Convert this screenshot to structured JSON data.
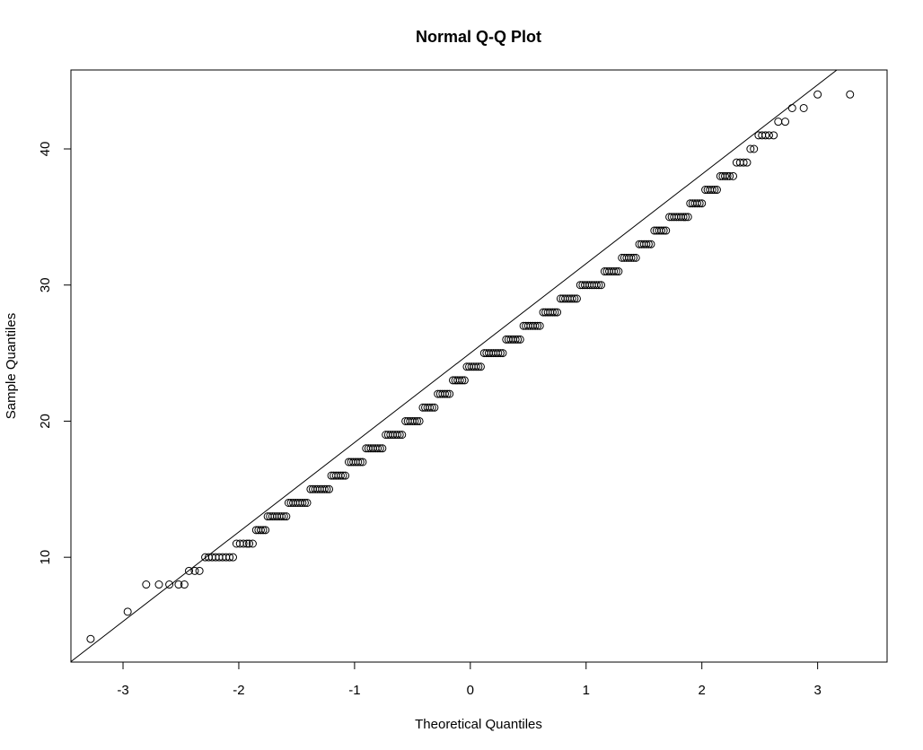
{
  "chart_data": {
    "type": "scatter",
    "title": "Normal Q-Q Plot",
    "xlabel": "Theoretical Quantiles",
    "ylabel": "Sample Quantiles",
    "xlim": [
      -3.45,
      3.6
    ],
    "ylim": [
      2.3,
      45.8
    ],
    "x_ticks": [
      -3,
      -2,
      -1,
      0,
      1,
      2,
      3
    ],
    "x_tick_labels": [
      "-3",
      "-2",
      "-1",
      "0",
      "1",
      "2",
      "3"
    ],
    "y_ticks": [
      10,
      20,
      30,
      40
    ],
    "y_tick_labels": [
      "10",
      "20",
      "30",
      "40"
    ],
    "reference_line": {
      "intercept": 25,
      "slope": 6.57
    },
    "colors": {
      "points": "#000000",
      "line": "#000000",
      "background": "#ffffff"
    },
    "grid": false,
    "points": [
      [
        -3.28,
        4
      ],
      [
        -2.96,
        6
      ],
      [
        -2.8,
        8
      ],
      [
        -2.69,
        8
      ],
      [
        -2.6,
        8
      ],
      [
        -2.52,
        8
      ],
      [
        -2.47,
        8
      ],
      [
        -2.43,
        9
      ],
      [
        -2.38,
        9
      ],
      [
        -2.34,
        9
      ],
      [
        -2.29,
        10
      ],
      [
        -2.26,
        10
      ],
      [
        -2.23,
        10
      ],
      [
        -2.2,
        10
      ],
      [
        -2.17,
        10
      ],
      [
        -2.14,
        10
      ],
      [
        -2.11,
        10
      ],
      [
        -2.08,
        10
      ],
      [
        -2.05,
        10
      ],
      [
        -2.02,
        11
      ],
      [
        -1.99,
        11
      ],
      [
        -1.96,
        11
      ],
      [
        -1.93,
        11
      ],
      [
        -1.91,
        11
      ],
      [
        -1.88,
        11
      ],
      [
        -1.85,
        12
      ],
      [
        -1.83,
        12
      ],
      [
        -1.81,
        12
      ],
      [
        -1.79,
        12
      ],
      [
        -1.77,
        12
      ],
      [
        -1.75,
        13
      ],
      [
        -1.73,
        13
      ],
      [
        -1.71,
        13
      ],
      [
        -1.69,
        13
      ],
      [
        -1.67,
        13
      ],
      [
        -1.65,
        13
      ],
      [
        -1.63,
        13
      ],
      [
        -1.61,
        13
      ],
      [
        -1.59,
        13
      ],
      [
        -1.57,
        14
      ],
      [
        -1.55,
        14
      ],
      [
        -1.53,
        14
      ],
      [
        -1.51,
        14
      ],
      [
        -1.49,
        14
      ],
      [
        -1.47,
        14
      ],
      [
        -1.45,
        14
      ],
      [
        -1.43,
        14
      ],
      [
        -1.41,
        14
      ],
      [
        -1.38,
        15
      ],
      [
        -1.36,
        15
      ],
      [
        -1.34,
        15
      ],
      [
        -1.32,
        15
      ],
      [
        -1.3,
        15
      ],
      [
        -1.28,
        15
      ],
      [
        -1.26,
        15
      ],
      [
        -1.24,
        15
      ],
      [
        -1.22,
        15
      ],
      [
        -1.2,
        16
      ],
      [
        -1.18,
        16
      ],
      [
        -1.16,
        16
      ],
      [
        -1.14,
        16
      ],
      [
        -1.12,
        16
      ],
      [
        -1.1,
        16
      ],
      [
        -1.08,
        16
      ],
      [
        -1.05,
        17
      ],
      [
        -1.03,
        17
      ],
      [
        -1.01,
        17
      ],
      [
        -0.99,
        17
      ],
      [
        -0.97,
        17
      ],
      [
        -0.95,
        17
      ],
      [
        -0.93,
        17
      ],
      [
        -0.9,
        18
      ],
      [
        -0.88,
        18
      ],
      [
        -0.86,
        18
      ],
      [
        -0.84,
        18
      ],
      [
        -0.82,
        18
      ],
      [
        -0.8,
        18
      ],
      [
        -0.78,
        18
      ],
      [
        -0.76,
        18
      ],
      [
        -0.73,
        19
      ],
      [
        -0.71,
        19
      ],
      [
        -0.69,
        19
      ],
      [
        -0.67,
        19
      ],
      [
        -0.65,
        19
      ],
      [
        -0.63,
        19
      ],
      [
        -0.61,
        19
      ],
      [
        -0.59,
        19
      ],
      [
        -0.56,
        20
      ],
      [
        -0.54,
        20
      ],
      [
        -0.52,
        20
      ],
      [
        -0.5,
        20
      ],
      [
        -0.48,
        20
      ],
      [
        -0.46,
        20
      ],
      [
        -0.44,
        20
      ],
      [
        -0.41,
        21
      ],
      [
        -0.39,
        21
      ],
      [
        -0.37,
        21
      ],
      [
        -0.35,
        21
      ],
      [
        -0.33,
        21
      ],
      [
        -0.31,
        21
      ],
      [
        -0.28,
        22
      ],
      [
        -0.26,
        22
      ],
      [
        -0.24,
        22
      ],
      [
        -0.22,
        22
      ],
      [
        -0.2,
        22
      ],
      [
        -0.18,
        22
      ],
      [
        -0.15,
        23
      ],
      [
        -0.13,
        23
      ],
      [
        -0.11,
        23
      ],
      [
        -0.09,
        23
      ],
      [
        -0.07,
        23
      ],
      [
        -0.05,
        23
      ],
      [
        -0.03,
        24
      ],
      [
        -0.01,
        24
      ],
      [
        0.01,
        24
      ],
      [
        0.03,
        24
      ],
      [
        0.05,
        24
      ],
      [
        0.07,
        24
      ],
      [
        0.09,
        24
      ],
      [
        0.12,
        25
      ],
      [
        0.14,
        25
      ],
      [
        0.16,
        25
      ],
      [
        0.18,
        25
      ],
      [
        0.2,
        25
      ],
      [
        0.22,
        25
      ],
      [
        0.24,
        25
      ],
      [
        0.26,
        25
      ],
      [
        0.28,
        25
      ],
      [
        0.31,
        26
      ],
      [
        0.33,
        26
      ],
      [
        0.35,
        26
      ],
      [
        0.37,
        26
      ],
      [
        0.39,
        26
      ],
      [
        0.41,
        26
      ],
      [
        0.43,
        26
      ],
      [
        0.46,
        27
      ],
      [
        0.48,
        27
      ],
      [
        0.5,
        27
      ],
      [
        0.52,
        27
      ],
      [
        0.54,
        27
      ],
      [
        0.56,
        27
      ],
      [
        0.58,
        27
      ],
      [
        0.6,
        27
      ],
      [
        0.63,
        28
      ],
      [
        0.65,
        28
      ],
      [
        0.67,
        28
      ],
      [
        0.69,
        28
      ],
      [
        0.71,
        28
      ],
      [
        0.73,
        28
      ],
      [
        0.75,
        28
      ],
      [
        0.78,
        29
      ],
      [
        0.8,
        29
      ],
      [
        0.82,
        29
      ],
      [
        0.84,
        29
      ],
      [
        0.86,
        29
      ],
      [
        0.88,
        29
      ],
      [
        0.9,
        29
      ],
      [
        0.92,
        29
      ],
      [
        0.95,
        30
      ],
      [
        0.97,
        30
      ],
      [
        0.99,
        30
      ],
      [
        1.01,
        30
      ],
      [
        1.03,
        30
      ],
      [
        1.05,
        30
      ],
      [
        1.07,
        30
      ],
      [
        1.09,
        30
      ],
      [
        1.11,
        30
      ],
      [
        1.13,
        30
      ],
      [
        1.16,
        31
      ],
      [
        1.18,
        31
      ],
      [
        1.2,
        31
      ],
      [
        1.22,
        31
      ],
      [
        1.24,
        31
      ],
      [
        1.26,
        31
      ],
      [
        1.28,
        31
      ],
      [
        1.31,
        32
      ],
      [
        1.33,
        32
      ],
      [
        1.35,
        32
      ],
      [
        1.37,
        32
      ],
      [
        1.39,
        32
      ],
      [
        1.41,
        32
      ],
      [
        1.43,
        32
      ],
      [
        1.46,
        33
      ],
      [
        1.48,
        33
      ],
      [
        1.5,
        33
      ],
      [
        1.52,
        33
      ],
      [
        1.54,
        33
      ],
      [
        1.56,
        33
      ],
      [
        1.59,
        34
      ],
      [
        1.61,
        34
      ],
      [
        1.63,
        34
      ],
      [
        1.65,
        34
      ],
      [
        1.67,
        34
      ],
      [
        1.69,
        34
      ],
      [
        1.72,
        35
      ],
      [
        1.74,
        35
      ],
      [
        1.76,
        35
      ],
      [
        1.78,
        35
      ],
      [
        1.8,
        35
      ],
      [
        1.82,
        35
      ],
      [
        1.84,
        35
      ],
      [
        1.86,
        35
      ],
      [
        1.88,
        35
      ],
      [
        1.9,
        36
      ],
      [
        1.92,
        36
      ],
      [
        1.94,
        36
      ],
      [
        1.96,
        36
      ],
      [
        1.98,
        36
      ],
      [
        2.0,
        36
      ],
      [
        2.03,
        37
      ],
      [
        2.05,
        37
      ],
      [
        2.07,
        37
      ],
      [
        2.09,
        37
      ],
      [
        2.11,
        37
      ],
      [
        2.13,
        37
      ],
      [
        2.16,
        38
      ],
      [
        2.18,
        38
      ],
      [
        2.2,
        38
      ],
      [
        2.22,
        38
      ],
      [
        2.24,
        38
      ],
      [
        2.27,
        38
      ],
      [
        2.3,
        39
      ],
      [
        2.33,
        39
      ],
      [
        2.36,
        39
      ],
      [
        2.39,
        39
      ],
      [
        2.42,
        40
      ],
      [
        2.45,
        40
      ],
      [
        2.49,
        41
      ],
      [
        2.52,
        41
      ],
      [
        2.55,
        41
      ],
      [
        2.58,
        41
      ],
      [
        2.62,
        41
      ],
      [
        2.66,
        42
      ],
      [
        2.72,
        42
      ],
      [
        2.78,
        43
      ],
      [
        2.88,
        43
      ],
      [
        3.0,
        44
      ],
      [
        3.28,
        44
      ]
    ]
  }
}
